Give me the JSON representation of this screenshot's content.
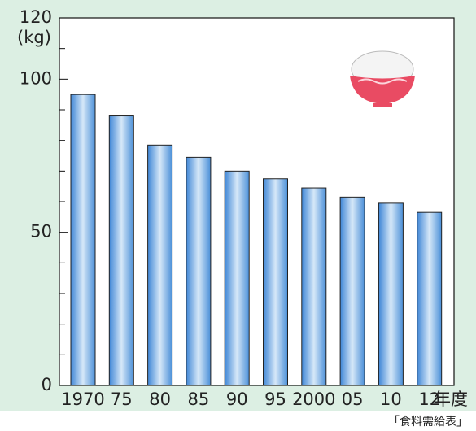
{
  "chart_data": {
    "type": "bar",
    "y_label": "(kg)",
    "x_unit": "年度",
    "source": "「食料需給表」",
    "categories": [
      "1970",
      "75",
      "80",
      "85",
      "90",
      "95",
      "2000",
      "05",
      "10",
      "12"
    ],
    "values": [
      95,
      88,
      78.5,
      74.5,
      70,
      67.5,
      64.5,
      61.5,
      59.5,
      56.5
    ],
    "color": "#4a8fd8",
    "ylim": [
      0,
      120
    ],
    "yticks": [
      0,
      50,
      100,
      120
    ],
    "minor_yticks": [
      10,
      20,
      30,
      40,
      60,
      70,
      80,
      90,
      110
    ]
  }
}
